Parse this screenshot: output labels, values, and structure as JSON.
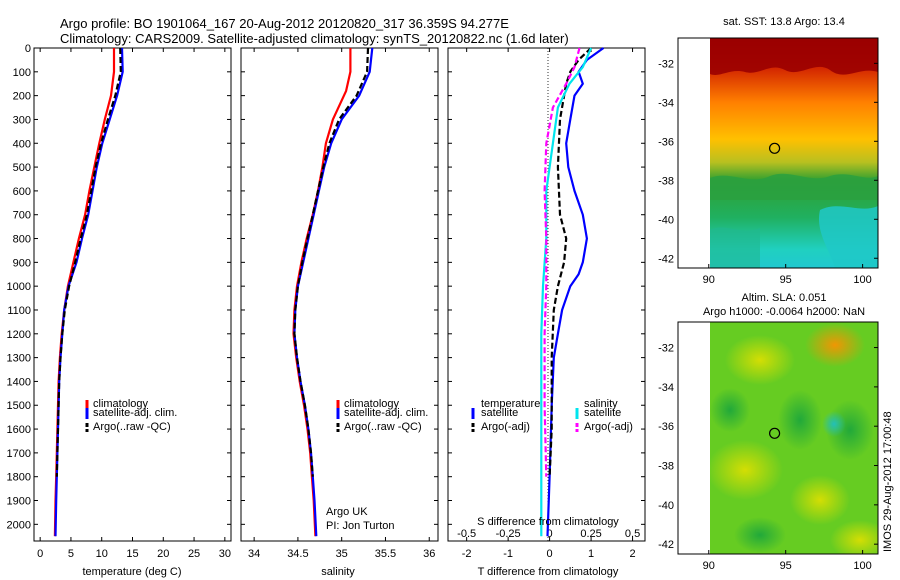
{
  "header": {
    "title_line1": "Argo profile: BO 1901064_167 20-Aug-2012 20120820_317 36.359S 94.277E",
    "title_line2": "Climatology: CARS2009. Satellite-adjusted climatology: synTS_20120822.nc (1.6d later)"
  },
  "colors": {
    "climatology": "#ff0000",
    "satellite": "#0000ff",
    "argo": "#000000",
    "salinity_sat": "#00e5ee",
    "salinity_argo": "#ff00ff"
  },
  "chart_data": [
    {
      "id": "temperature",
      "type": "line",
      "xlabel": "temperature (deg C)",
      "xlim": [
        -1,
        31
      ],
      "xticks": [
        0,
        5,
        10,
        15,
        20,
        25,
        30
      ],
      "ylim": [
        2070,
        0
      ],
      "yticks": [
        0,
        100,
        200,
        300,
        400,
        500,
        600,
        700,
        800,
        900,
        1000,
        1100,
        1200,
        1300,
        1400,
        1500,
        1600,
        1700,
        1800,
        1900,
        2000
      ],
      "legend": [
        "climatology",
        "satellite-adj. clim.",
        "Argo(..raw -QC)"
      ],
      "series": [
        {
          "name": "climatology",
          "color_key": "climatology",
          "points": [
            [
              12.0,
              0
            ],
            [
              12.0,
              100
            ],
            [
              11.5,
              200
            ],
            [
              10.5,
              300
            ],
            [
              9.6,
              400
            ],
            [
              8.8,
              500
            ],
            [
              8.0,
              600
            ],
            [
              7.3,
              700
            ],
            [
              6.3,
              800
            ],
            [
              5.4,
              900
            ],
            [
              4.5,
              1000
            ],
            [
              3.9,
              1100
            ],
            [
              3.5,
              1200
            ],
            [
              3.2,
              1300
            ],
            [
              3.0,
              1400
            ],
            [
              2.9,
              1500
            ],
            [
              2.8,
              1600
            ],
            [
              2.7,
              1700
            ],
            [
              2.6,
              1800
            ],
            [
              2.5,
              1900
            ],
            [
              2.4,
              2050
            ]
          ]
        },
        {
          "name": "satellite-adj. clim.",
          "color_key": "satellite",
          "points": [
            [
              13.3,
              0
            ],
            [
              13.4,
              100
            ],
            [
              12.5,
              200
            ],
            [
              11.3,
              300
            ],
            [
              10.1,
              400
            ],
            [
              9.2,
              500
            ],
            [
              8.5,
              600
            ],
            [
              7.8,
              700
            ],
            [
              6.8,
              800
            ],
            [
              5.9,
              900
            ],
            [
              4.6,
              1000
            ],
            [
              3.9,
              1100
            ],
            [
              3.6,
              1200
            ],
            [
              3.3,
              1300
            ],
            [
              3.1,
              1400
            ],
            [
              3.0,
              1500
            ],
            [
              2.9,
              1600
            ],
            [
              2.8,
              1700
            ],
            [
              2.7,
              1800
            ],
            [
              2.6,
              1900
            ],
            [
              2.5,
              2050
            ]
          ]
        },
        {
          "name": "Argo(..raw -QC)",
          "color_key": "argo",
          "dashed": true,
          "points": [
            [
              13.0,
              0
            ],
            [
              13.1,
              100
            ],
            [
              12.2,
              200
            ],
            [
              11.0,
              300
            ],
            [
              9.9,
              400
            ],
            [
              9.0,
              500
            ],
            [
              8.3,
              600
            ],
            [
              7.6,
              700
            ],
            [
              6.6,
              800
            ],
            [
              5.7,
              900
            ],
            [
              4.7,
              1000
            ],
            [
              4.0,
              1100
            ],
            [
              3.6,
              1200
            ],
            [
              3.3,
              1300
            ],
            [
              3.1,
              1400
            ],
            [
              3.0,
              1500
            ],
            [
              2.9,
              1600
            ],
            [
              2.8,
              1700
            ],
            [
              2.7,
              1800
            ]
          ]
        }
      ]
    },
    {
      "id": "salinity",
      "type": "line",
      "xlabel": "salinity",
      "xlim": [
        33.85,
        36.1
      ],
      "xticks": [
        34,
        34.5,
        35,
        35.5,
        36
      ],
      "xticklabels": [
        "34",
        "34.5",
        "35",
        "35.5",
        "36"
      ],
      "ylim": [
        2070,
        0
      ],
      "legend": [
        "climatology",
        "satellite-adj. clim.",
        "Argo(..raw -QC)"
      ],
      "annotation": [
        "Argo UK",
        "PI: Jon Turton"
      ],
      "series": [
        {
          "name": "climatology",
          "color_key": "climatology",
          "points": [
            [
              35.1,
              0
            ],
            [
              35.1,
              100
            ],
            [
              35.05,
              180
            ],
            [
              34.9,
              300
            ],
            [
              34.82,
              400
            ],
            [
              34.78,
              500
            ],
            [
              34.73,
              600
            ],
            [
              34.67,
              700
            ],
            [
              34.6,
              800
            ],
            [
              34.54,
              900
            ],
            [
              34.49,
              1000
            ],
            [
              34.46,
              1100
            ],
            [
              34.45,
              1200
            ],
            [
              34.48,
              1300
            ],
            [
              34.52,
              1400
            ],
            [
              34.57,
              1500
            ],
            [
              34.61,
              1600
            ],
            [
              34.64,
              1700
            ],
            [
              34.66,
              1800
            ],
            [
              34.68,
              1900
            ],
            [
              34.7,
              2050
            ]
          ]
        },
        {
          "name": "satellite-adj. clim.",
          "color_key": "satellite",
          "points": [
            [
              35.35,
              0
            ],
            [
              35.32,
              100
            ],
            [
              35.2,
              200
            ],
            [
              35.0,
              300
            ],
            [
              34.88,
              400
            ],
            [
              34.8,
              500
            ],
            [
              34.74,
              600
            ],
            [
              34.68,
              700
            ],
            [
              34.62,
              800
            ],
            [
              34.56,
              900
            ],
            [
              34.5,
              1000
            ],
            [
              34.47,
              1100
            ],
            [
              34.46,
              1200
            ],
            [
              34.49,
              1300
            ],
            [
              34.53,
              1400
            ],
            [
              34.58,
              1500
            ],
            [
              34.62,
              1600
            ],
            [
              34.65,
              1700
            ],
            [
              34.67,
              1800
            ],
            [
              34.69,
              1900
            ],
            [
              34.71,
              2050
            ]
          ]
        },
        {
          "name": "Argo(..raw -QC)",
          "color_key": "argo",
          "dashed": true,
          "points": [
            [
              35.3,
              0
            ],
            [
              35.29,
              100
            ],
            [
              35.17,
              200
            ],
            [
              34.97,
              300
            ],
            [
              34.86,
              400
            ],
            [
              34.79,
              500
            ],
            [
              34.73,
              600
            ],
            [
              34.67,
              700
            ],
            [
              34.61,
              800
            ],
            [
              34.55,
              900
            ],
            [
              34.5,
              1000
            ],
            [
              34.47,
              1100
            ],
            [
              34.46,
              1200
            ],
            [
              34.49,
              1300
            ],
            [
              34.53,
              1400
            ],
            [
              34.58,
              1500
            ],
            [
              34.62,
              1600
            ],
            [
              34.65,
              1700
            ],
            [
              34.67,
              1800
            ]
          ]
        }
      ]
    },
    {
      "id": "difference",
      "type": "line",
      "xlabel": "T difference from climatology",
      "xlabel_top": "S difference from climatology",
      "xlim": [
        -2.45,
        2.3
      ],
      "xticks": [
        -2,
        -1,
        0,
        1,
        2
      ],
      "top_ticks": [
        -0.5,
        -0.25,
        0,
        0.25,
        0.5
      ],
      "top_ticklabels": [
        "-0.5",
        "-0.25",
        "0",
        "0.25",
        "0.5"
      ],
      "ylim": [
        2070,
        0
      ],
      "legend_headers": [
        "temperature",
        "salinity"
      ],
      "legend": [
        "satellite",
        "Argo(-adj)",
        "satellite",
        "Argo(-adj)"
      ],
      "series": [
        {
          "name": "satellite",
          "group": "temperature",
          "color_key": "satellite",
          "points": [
            [
              1.3,
              0
            ],
            [
              0.9,
              50
            ],
            [
              0.7,
              100
            ],
            [
              0.8,
              150
            ],
            [
              0.6,
              200
            ],
            [
              0.5,
              300
            ],
            [
              0.4,
              400
            ],
            [
              0.45,
              500
            ],
            [
              0.6,
              600
            ],
            [
              0.8,
              700
            ],
            [
              0.9,
              800
            ],
            [
              0.8,
              900
            ],
            [
              0.7,
              950
            ],
            [
              0.5,
              1000
            ],
            [
              0.3,
              1100
            ],
            [
              0.2,
              1200
            ],
            [
              0.1,
              1300
            ],
            [
              0.05,
              1500
            ],
            [
              0.0,
              1800
            ],
            [
              -0.05,
              2050
            ]
          ]
        },
        {
          "name": "Argo(-adj)",
          "group": "temperature",
          "color_key": "argo",
          "dashed": true,
          "points": [
            [
              1.0,
              0
            ],
            [
              0.7,
              50
            ],
            [
              0.5,
              100
            ],
            [
              0.4,
              150
            ],
            [
              0.25,
              300
            ],
            [
              0.2,
              500
            ],
            [
              0.25,
              700
            ],
            [
              0.4,
              800
            ],
            [
              0.35,
              900
            ],
            [
              0.2,
              1000
            ],
            [
              0.1,
              1100
            ],
            [
              0.05,
              1300
            ],
            [
              0.05,
              1600
            ],
            [
              0.0,
              1800
            ]
          ]
        },
        {
          "name": "satellite",
          "group": "salinity",
          "color_key": "salinity_sat",
          "points": [
            [
              0.25,
              0
            ],
            [
              0.2,
              80
            ],
            [
              0.12,
              150
            ],
            [
              0.05,
              250
            ],
            [
              0.02,
              400
            ],
            [
              -0.02,
              600
            ],
            [
              -0.02,
              800
            ],
            [
              -0.04,
              1000
            ],
            [
              -0.05,
              1200
            ],
            [
              -0.05,
              1500
            ],
            [
              -0.05,
              1800
            ],
            [
              -0.05,
              2050
            ]
          ]
        },
        {
          "name": "Argo(-adj)",
          "group": "salinity",
          "color_key": "salinity_argo",
          "dashed": true,
          "points": [
            [
              0.18,
              0
            ],
            [
              0.15,
              80
            ],
            [
              0.1,
              150
            ],
            [
              0.02,
              250
            ],
            [
              -0.02,
              400
            ],
            [
              -0.03,
              600
            ],
            [
              -0.02,
              800
            ],
            [
              -0.02,
              1000
            ],
            [
              -0.03,
              1200
            ],
            [
              -0.03,
              1500
            ],
            [
              -0.02,
              1800
            ]
          ]
        }
      ]
    },
    {
      "id": "sst_map",
      "type": "heatmap",
      "title": "sat. SST: 13.8  Argo: 13.4",
      "xlim": [
        88,
        101
      ],
      "ylim": [
        -42.5,
        -30.7
      ],
      "xticks": [
        90,
        95,
        100
      ],
      "yticks": [
        -32,
        -34,
        -36,
        -38,
        -40,
        -42
      ],
      "data_extent": {
        "lon": [
          90,
          101
        ],
        "lat": [
          -42.5,
          -30.7
        ]
      },
      "marker": {
        "lon": 94.277,
        "lat": -36.359
      }
    },
    {
      "id": "sla_map",
      "type": "heatmap",
      "title_line1": "Altim. SLA: 0.051",
      "title_line2": "Argo h1000: -0.0064  h2000: NaN",
      "xlim": [
        88,
        101
      ],
      "ylim": [
        -42.5,
        -30.7
      ],
      "xticks": [
        90,
        95,
        100
      ],
      "yticks": [
        -32,
        -34,
        -36,
        -38,
        -40,
        -42
      ],
      "data_extent": {
        "lon": [
          90,
          101
        ],
        "lat": [
          -42.5,
          -30.7
        ]
      },
      "marker": {
        "lon": 94.277,
        "lat": -36.359
      }
    }
  ],
  "footer": {
    "stamp": "IMOS 29-Aug-2012 17:00:48"
  }
}
